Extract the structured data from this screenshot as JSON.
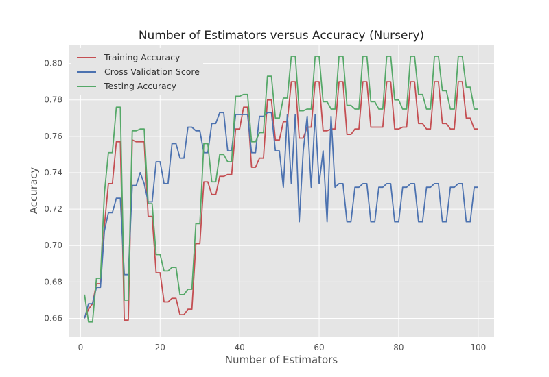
{
  "chart_data": {
    "type": "line",
    "title": "Number of Estimators versus Accuracy (Nursery)",
    "xlabel": "Number of Estimators",
    "ylabel": "Accuracy",
    "xlim": [
      -3,
      104
    ],
    "ylim": [
      0.65,
      0.81
    ],
    "xticks": [
      0,
      20,
      40,
      60,
      80,
      100
    ],
    "yticks": [
      0.66,
      0.68,
      0.7,
      0.72,
      0.74,
      0.76,
      0.78,
      0.8
    ],
    "xtick_labels": [
      "0",
      "20",
      "40",
      "60",
      "80",
      "100"
    ],
    "ytick_labels": [
      "0.66",
      "0.68",
      "0.70",
      "0.72",
      "0.74",
      "0.76",
      "0.78",
      "0.80"
    ],
    "grid": true,
    "legend_position": "top-left",
    "background": "#e5e5e5",
    "x": [
      1,
      2,
      3,
      4,
      5,
      6,
      7,
      8,
      9,
      10,
      11,
      12,
      13,
      14,
      15,
      16,
      17,
      18,
      19,
      20,
      21,
      22,
      23,
      24,
      25,
      26,
      27,
      28,
      29,
      30,
      31,
      32,
      33,
      34,
      35,
      36,
      37,
      38,
      39,
      40,
      41,
      42,
      43,
      44,
      45,
      46,
      47,
      48,
      49,
      50,
      51,
      52,
      53,
      54,
      55,
      56,
      57,
      58,
      59,
      60,
      61,
      62,
      63,
      64,
      65,
      66,
      67,
      68,
      69,
      70,
      71,
      72,
      73,
      74,
      75,
      76,
      77,
      78,
      79,
      80,
      81,
      82,
      83,
      84,
      85,
      86,
      87,
      88,
      89,
      90,
      91,
      92,
      93,
      94,
      95,
      96,
      97,
      98,
      99,
      100
    ],
    "series": [
      {
        "name": "Training Accuracy",
        "color": "#c44e52",
        "values": [
          0.66,
          0.665,
          0.668,
          0.679,
          0.679,
          0.711,
          0.734,
          0.734,
          0.757,
          0.757,
          0.659,
          0.659,
          0.758,
          0.757,
          0.757,
          0.757,
          0.716,
          0.716,
          0.685,
          0.685,
          0.669,
          0.669,
          0.671,
          0.671,
          0.662,
          0.662,
          0.665,
          0.665,
          0.701,
          0.701,
          0.735,
          0.735,
          0.728,
          0.728,
          0.738,
          0.738,
          0.739,
          0.739,
          0.764,
          0.764,
          0.776,
          0.776,
          0.743,
          0.743,
          0.748,
          0.748,
          0.78,
          0.78,
          0.758,
          0.758,
          0.768,
          0.768,
          0.79,
          0.79,
          0.759,
          0.759,
          0.765,
          0.765,
          0.79,
          0.79,
          0.763,
          0.763,
          0.764,
          0.764,
          0.79,
          0.79,
          0.761,
          0.761,
          0.764,
          0.764,
          0.79,
          0.79,
          0.765,
          0.765,
          0.765,
          0.765,
          0.79,
          0.79,
          0.764,
          0.764,
          0.765,
          0.765,
          0.79,
          0.79,
          0.767,
          0.767,
          0.764,
          0.764,
          0.79,
          0.79,
          0.767,
          0.767,
          0.764,
          0.764,
          0.79,
          0.79,
          0.77,
          0.77,
          0.764,
          0.764
        ]
      },
      {
        "name": "Cross Validation Score",
        "color": "#4c72b0",
        "values": [
          0.66,
          0.668,
          0.668,
          0.677,
          0.677,
          0.708,
          0.718,
          0.718,
          0.726,
          0.726,
          0.684,
          0.684,
          0.733,
          0.733,
          0.74,
          0.734,
          0.724,
          0.724,
          0.746,
          0.746,
          0.734,
          0.734,
          0.756,
          0.756,
          0.748,
          0.748,
          0.765,
          0.765,
          0.763,
          0.763,
          0.751,
          0.751,
          0.767,
          0.767,
          0.773,
          0.773,
          0.752,
          0.752,
          0.772,
          0.772,
          0.772,
          0.772,
          0.751,
          0.751,
          0.771,
          0.771,
          0.773,
          0.773,
          0.752,
          0.752,
          0.732,
          0.772,
          0.734,
          0.772,
          0.713,
          0.752,
          0.771,
          0.732,
          0.772,
          0.734,
          0.752,
          0.713,
          0.771,
          0.732,
          0.734,
          0.734,
          0.713,
          0.713,
          0.732,
          0.732,
          0.734,
          0.734,
          0.713,
          0.713,
          0.732,
          0.732,
          0.734,
          0.734,
          0.713,
          0.713,
          0.732,
          0.732,
          0.734,
          0.734,
          0.713,
          0.713,
          0.732,
          0.732,
          0.734,
          0.734,
          0.713,
          0.713,
          0.732,
          0.732,
          0.734,
          0.734,
          0.713,
          0.713,
          0.732,
          0.732
        ]
      },
      {
        "name": "Testing Accuracy",
        "color": "#55a868",
        "values": [
          0.673,
          0.658,
          0.658,
          0.682,
          0.682,
          0.729,
          0.751,
          0.751,
          0.776,
          0.776,
          0.67,
          0.67,
          0.763,
          0.763,
          0.764,
          0.764,
          0.723,
          0.723,
          0.695,
          0.695,
          0.686,
          0.686,
          0.688,
          0.688,
          0.673,
          0.673,
          0.676,
          0.676,
          0.712,
          0.712,
          0.756,
          0.756,
          0.735,
          0.735,
          0.75,
          0.75,
          0.746,
          0.746,
          0.782,
          0.782,
          0.783,
          0.783,
          0.757,
          0.757,
          0.762,
          0.762,
          0.793,
          0.793,
          0.77,
          0.77,
          0.781,
          0.781,
          0.804,
          0.804,
          0.774,
          0.774,
          0.775,
          0.775,
          0.804,
          0.804,
          0.779,
          0.779,
          0.775,
          0.775,
          0.804,
          0.804,
          0.777,
          0.777,
          0.775,
          0.775,
          0.804,
          0.804,
          0.779,
          0.779,
          0.775,
          0.775,
          0.804,
          0.804,
          0.78,
          0.78,
          0.775,
          0.775,
          0.804,
          0.804,
          0.783,
          0.783,
          0.775,
          0.775,
          0.804,
          0.804,
          0.785,
          0.785,
          0.775,
          0.775,
          0.804,
          0.804,
          0.787,
          0.787,
          0.775,
          0.775
        ]
      }
    ]
  }
}
